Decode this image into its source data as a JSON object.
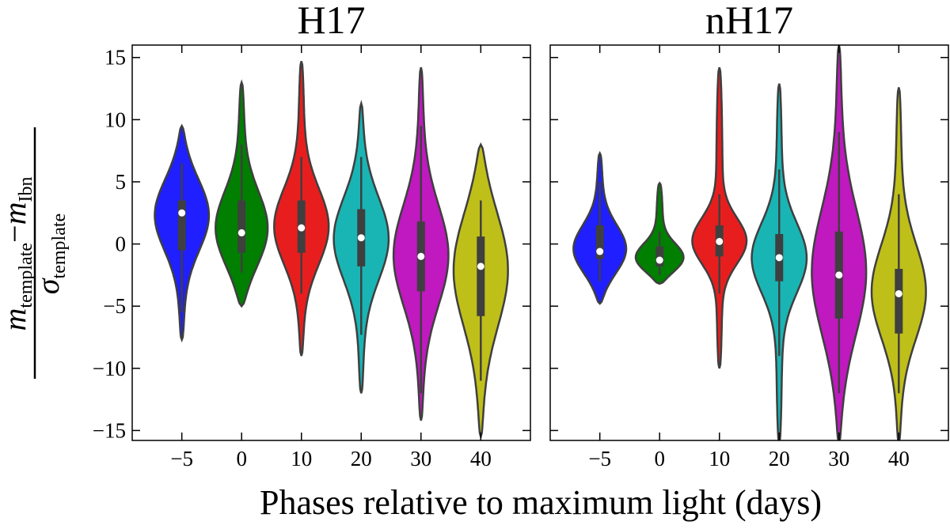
{
  "figure": {
    "xlabel": "Phases relative to maximum light (days)",
    "ylabel": {
      "num_var1": "m",
      "num_sub1": "template",
      "minus": "−",
      "num_var2": "m",
      "num_sub2": "Ibn",
      "den_var": "σ",
      "den_sub": "template"
    }
  },
  "chart_data": [
    {
      "type": "violin",
      "title": "H17",
      "categories": [
        "−5",
        "0",
        "10",
        "20",
        "30",
        "40"
      ],
      "ylim": [
        -15.8,
        16
      ],
      "yticks": [
        {
          "value": -15,
          "label": "−15"
        },
        {
          "value": -10,
          "label": "−10"
        },
        {
          "value": -5,
          "label": "−5"
        },
        0,
        5,
        10,
        15
      ],
      "show_ytick_labels": true,
      "violins": [
        {
          "color": "#1f1fff",
          "min": -7.7,
          "max": 9.5,
          "whisker_low": -5.5,
          "q1": -0.5,
          "median": 2.5,
          "q3": 3.5,
          "whisker_high": 6.5
        },
        {
          "color": "#007f00",
          "min": -5,
          "max": 13,
          "whisker_low": -2.3,
          "q1": -0.7,
          "median": 0.9,
          "q3": 3.5,
          "whisker_high": 8
        },
        {
          "color": "#e81e1e",
          "min": -9,
          "max": 14.7,
          "whisker_low": -4,
          "q1": -0.7,
          "median": 1.3,
          "q3": 3.5,
          "whisker_high": 7
        },
        {
          "color": "#19b5b5",
          "min": -12,
          "max": 11.3,
          "whisker_low": -7.3,
          "q1": -1.8,
          "median": 0.5,
          "q3": 2.8,
          "whisker_high": 7
        },
        {
          "color": "#bf19bf",
          "min": -14.2,
          "max": 14.2,
          "whisker_low": -12,
          "q1": -3.8,
          "median": -1,
          "q3": 1.8,
          "whisker_high": 9.5
        },
        {
          "color": "#bfbf19",
          "min": -15.5,
          "max": 8,
          "whisker_low": -11,
          "q1": -5.8,
          "median": -1.8,
          "q3": 0.6,
          "whisker_high": 3.5
        }
      ]
    },
    {
      "type": "violin",
      "title": "nH17",
      "categories": [
        "−5",
        "0",
        "10",
        "20",
        "30",
        "40"
      ],
      "ylim": [
        -15.8,
        16
      ],
      "yticks": [
        -15,
        -10,
        -5,
        0,
        5,
        10,
        15
      ],
      "show_ytick_labels": false,
      "violins": [
        {
          "color": "#1f1fff",
          "min": -4.8,
          "max": 7.3,
          "whisker_low": -3,
          "q1": -1.2,
          "median": -0.6,
          "q3": 1.5,
          "whisker_high": 5
        },
        {
          "color": "#007f00",
          "min": -3.2,
          "max": 4.9,
          "whisker_low": -2.5,
          "q1": -1.8,
          "median": -1.3,
          "q3": -0.2,
          "whisker_high": 1
        },
        {
          "color": "#e81e1e",
          "min": -10,
          "max": 14.2,
          "whisker_low": -4,
          "q1": -1,
          "median": 0.2,
          "q3": 1.5,
          "whisker_high": 4
        },
        {
          "color": "#19b5b5",
          "min": -16,
          "max": 12.9,
          "whisker_low": -9,
          "q1": -3,
          "median": -1.1,
          "q3": 0.8,
          "whisker_high": 6
        },
        {
          "color": "#bf19bf",
          "min": -16,
          "max": 16,
          "whisker_low": -12,
          "q1": -6,
          "median": -2.5,
          "q3": 1,
          "whisker_high": 9
        },
        {
          "color": "#bfbf19",
          "min": -16,
          "max": 12.6,
          "whisker_low": -12,
          "q1": -7.2,
          "median": -4,
          "q3": -2,
          "whisker_high": 4
        }
      ]
    }
  ]
}
